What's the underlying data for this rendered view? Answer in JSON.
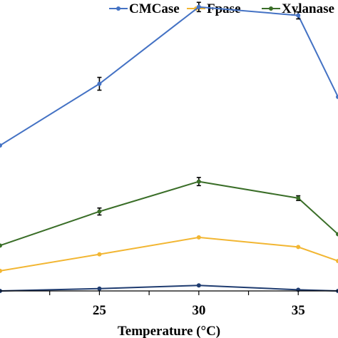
{
  "chart_data": {
    "type": "line",
    "title": "",
    "xlabel": "Temperature (°C)",
    "ylabel": "",
    "x_ticks": [
      25,
      30,
      35
    ],
    "xlim": [
      20,
      37
    ],
    "ylim": [
      0,
      1
    ],
    "grid": false,
    "legend_position": "top",
    "series": [
      {
        "name": "CMCase",
        "color": "#4472C4",
        "x": [
          20,
          25,
          30,
          35,
          37
        ],
        "y": [
          0.5,
          0.712,
          0.976,
          0.947,
          0.667
        ],
        "error": [
          0,
          0.022,
          0.016,
          0.012,
          0
        ]
      },
      {
        "name": "Fpase",
        "color": "#F2B632",
        "x": [
          20,
          25,
          30,
          35,
          37
        ],
        "y": [
          0.069,
          0.126,
          0.184,
          0.151,
          0.103
        ]
      },
      {
        "name": "Xylanase",
        "color": "#3A6E28",
        "x": [
          20,
          25,
          30,
          35,
          37
        ],
        "y": [
          0.156,
          0.273,
          0.376,
          0.319,
          0.195
        ],
        "error": [
          0,
          0.012,
          0.014,
          0.008,
          0
        ]
      },
      {
        "name": "",
        "color": "#1F3C70",
        "x": [
          20,
          25,
          30,
          35,
          37
        ],
        "y": [
          0.0,
          0.008,
          0.019,
          0.004,
          0.0
        ]
      }
    ]
  }
}
